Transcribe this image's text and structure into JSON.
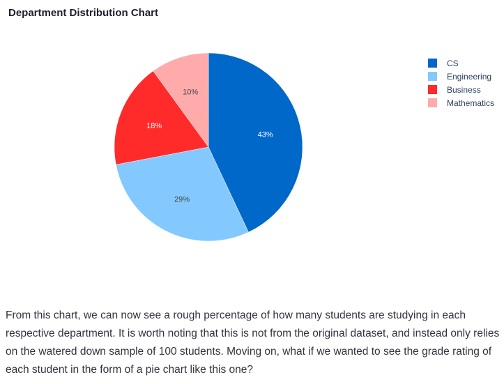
{
  "chart_title": "Department Distribution Chart",
  "chart_data": {
    "type": "pie",
    "categories": [
      "CS",
      "Engineering",
      "Business",
      "Mathematics"
    ],
    "values": [
      43,
      29,
      18,
      10
    ],
    "labels": [
      "43%",
      "29%",
      "18%",
      "10%"
    ],
    "colors": [
      "#0068c9",
      "#83c9ff",
      "#ff2b2b",
      "#ffabab"
    ],
    "label_colors": [
      "#ffffff",
      "#444444",
      "#ffffff",
      "#444444"
    ],
    "title": "Department Distribution Chart",
    "legend_position": "top-right",
    "start_angle_deg": 0,
    "direction": "clockwise"
  },
  "description": "From this chart, we can now see a rough percentage of how many students are studying in each respective department. It is worth noting that this is not from the original dataset, and instead only relies on the watered down sample of 100 students. Moving on, what if we wanted to see the grade rating of each student in the form of a pie chart like this one?"
}
